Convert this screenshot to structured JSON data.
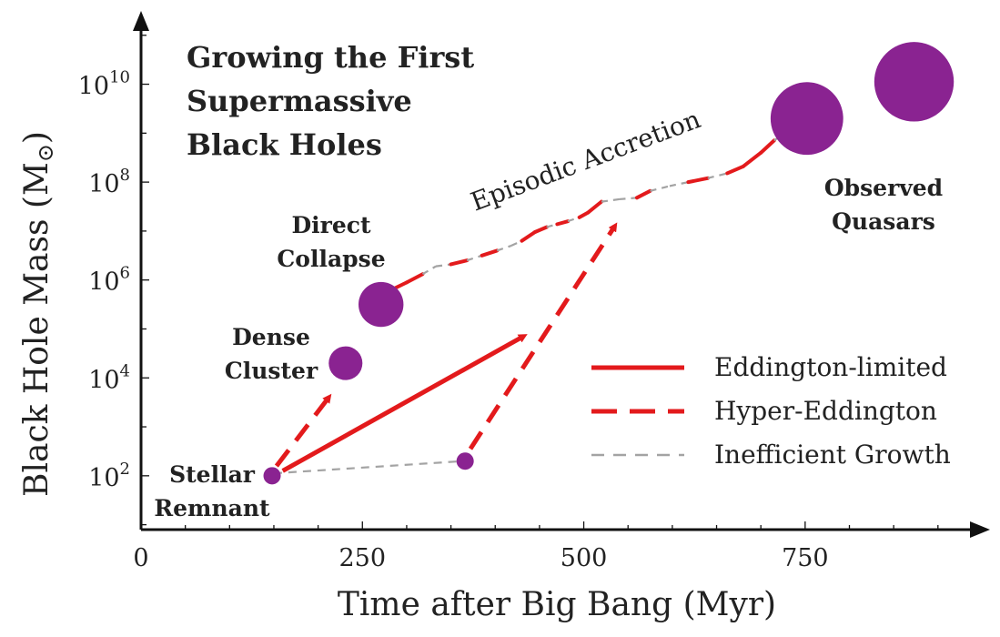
{
  "chart_data": {
    "type": "scatter",
    "title_lines": [
      "Growing the First",
      "Supermassive",
      "Black Holes"
    ],
    "xlabel": "Time after Big Bang (Myr)",
    "ylabel_text": "Black Hole Mass (M",
    "ylabel_sun": "⊙",
    "ylabel_close": ")",
    "xlim": [
      0,
      930
    ],
    "ylim_log10": [
      0.9,
      11.2
    ],
    "x_ticks": [
      0,
      250,
      500,
      750
    ],
    "x_tick_labels": [
      "0",
      "250",
      "500",
      "750"
    ],
    "x_minor_step": 50,
    "y_ticks_exp": [
      2,
      4,
      6,
      8,
      10
    ],
    "y_tick_base": "10",
    "y_tick_exp_labels": [
      "2",
      "4",
      "6",
      "8",
      "10"
    ],
    "colors": {
      "point": "#8a2391",
      "eddington": "#e31a1c",
      "inefficient": "#a3a3a3",
      "axis": "#111111",
      "text": "#222222"
    },
    "points": [
      {
        "name": "stellar-remnant",
        "x": 148,
        "log_mass": 2.0,
        "radius_scale": 1.0,
        "label_lines": [
          "Stellar",
          "Remnant"
        ]
      },
      {
        "name": "seed-delayed",
        "x": 366,
        "log_mass": 2.3,
        "radius_scale": 1.0,
        "label_lines": []
      },
      {
        "name": "dense-cluster",
        "x": 231,
        "log_mass": 4.3,
        "radius_scale": 1.95,
        "label_lines": [
          "Dense",
          "Cluster"
        ]
      },
      {
        "name": "direct-collapse",
        "x": 271,
        "log_mass": 5.5,
        "radius_scale": 2.6,
        "label_lines": [
          "Direct",
          "Collapse"
        ]
      },
      {
        "name": "quasar-1",
        "x": 752,
        "log_mass": 9.3,
        "radius_scale": 4.2,
        "label_lines": []
      },
      {
        "name": "quasar-2",
        "x": 873,
        "log_mass": 10.05,
        "radius_scale": 4.6,
        "label_lines": [
          "Observed",
          "Quasars"
        ]
      }
    ],
    "arrows": [
      {
        "name": "arrow-to-dense-cluster",
        "style": "hyper",
        "from": [
          153,
          2.2
        ],
        "to": [
          212,
          3.6
        ]
      },
      {
        "name": "arrow-eddington-limited",
        "style": "eddington",
        "from": [
          160,
          2.1
        ],
        "to": [
          432,
          4.85
        ]
      },
      {
        "name": "arrow-hyper-from-delayed",
        "style": "hyper",
        "from": [
          372,
          2.55
        ],
        "to": [
          535,
          7.1
        ]
      }
    ],
    "inefficient_segments": [
      {
        "name": "remnant-to-delayed",
        "from": [
          150,
          2.05
        ],
        "to": [
          364,
          2.3
        ]
      }
    ],
    "episodic_path": {
      "label": "Episodic Accretion",
      "points": [
        [
          283,
          5.8
        ],
        [
          300,
          5.95
        ],
        [
          318,
          6.12
        ],
        [
          333,
          6.28
        ],
        [
          350,
          6.32
        ],
        [
          368,
          6.4
        ],
        [
          385,
          6.5
        ],
        [
          402,
          6.6
        ],
        [
          418,
          6.7
        ],
        [
          430,
          6.8
        ],
        [
          445,
          6.98
        ],
        [
          458,
          7.08
        ],
        [
          470,
          7.14
        ],
        [
          482,
          7.2
        ],
        [
          495,
          7.28
        ],
        [
          505,
          7.38
        ],
        [
          520,
          7.6
        ],
        [
          540,
          7.65
        ],
        [
          560,
          7.68
        ],
        [
          575,
          7.82
        ],
        [
          597,
          7.92
        ],
        [
          618,
          8.0
        ],
        [
          640,
          8.08
        ],
        [
          662,
          8.18
        ],
        [
          680,
          8.32
        ],
        [
          700,
          8.6
        ],
        [
          715,
          8.85
        ],
        [
          735,
          9.1
        ]
      ],
      "pattern": [
        "hyper",
        "hyper",
        "inefficient",
        "inefficient",
        "hyper",
        "inefficient",
        "hyper",
        "inefficient",
        "inefficient",
        "hyper",
        "hyper",
        "inefficient",
        "hyper",
        "inefficient",
        "hyper",
        "hyper",
        "inefficient",
        "inefficient",
        "hyper",
        "inefficient",
        "inefficient",
        "hyper",
        "inefficient",
        "hyper",
        "hyper",
        "hyper",
        "inefficient"
      ]
    },
    "legend": {
      "position": "right",
      "entries": [
        {
          "style": "eddington",
          "label": "Eddington-limited"
        },
        {
          "style": "hyper",
          "label": "Hyper-Eddington"
        },
        {
          "style": "inefficient",
          "label": "Inefficient Growth"
        }
      ]
    }
  }
}
